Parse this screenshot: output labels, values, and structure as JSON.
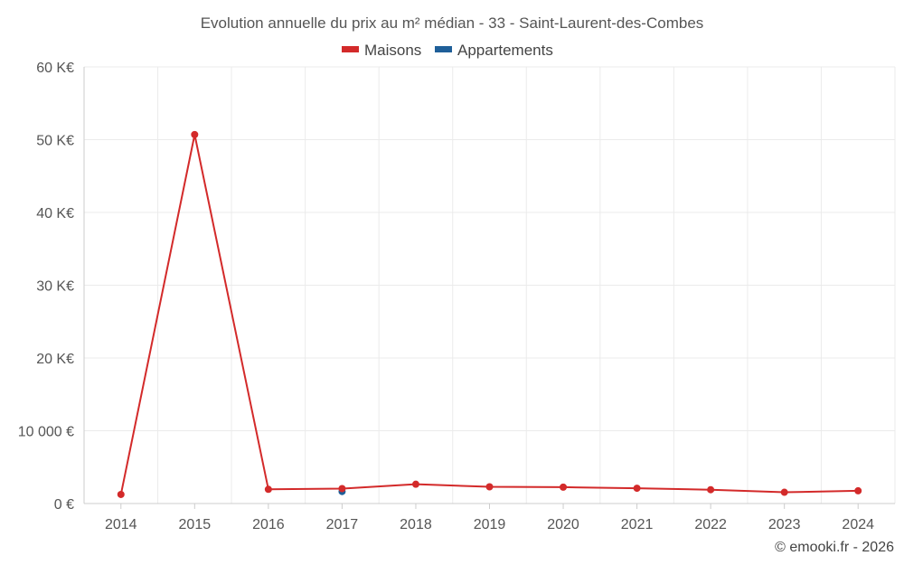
{
  "chart_data": {
    "type": "line",
    "title": "Evolution annuelle du prix au m² médian - 33 - Saint-Laurent-des-Combes",
    "categories": [
      "2014",
      "2015",
      "2016",
      "2017",
      "2018",
      "2019",
      "2020",
      "2021",
      "2022",
      "2023",
      "2024"
    ],
    "series": [
      {
        "name": "Maisons",
        "color": "#d32a2a",
        "values": [
          1250,
          50700,
          1950,
          2050,
          2650,
          2300,
          2250,
          2100,
          1900,
          1550,
          1750
        ]
      },
      {
        "name": "Appartements",
        "color": "#1f5f99",
        "values": [
          null,
          null,
          null,
          1650,
          null,
          null,
          null,
          null,
          null,
          null,
          null
        ]
      }
    ],
    "yticks": [
      {
        "value": 0,
        "label": "0 €"
      },
      {
        "value": 10000,
        "label": "10 000 €"
      },
      {
        "value": 20000,
        "label": "20 K€"
      },
      {
        "value": 30000,
        "label": "30 K€"
      },
      {
        "value": 40000,
        "label": "40 K€"
      },
      {
        "value": 50000,
        "label": "50 K€"
      },
      {
        "value": 60000,
        "label": "60 K€"
      }
    ],
    "ylim": [
      0,
      60000
    ],
    "grid": true,
    "legend": "top-center"
  },
  "credit": "© emooki.fr - 2026"
}
